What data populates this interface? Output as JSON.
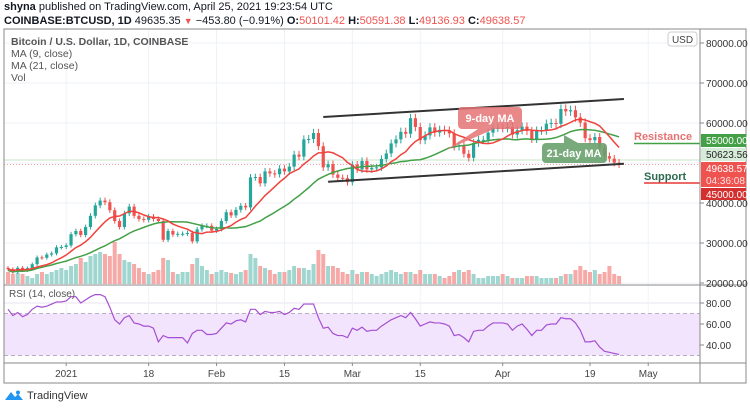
{
  "header": {
    "author": "shyna",
    "published": "published on TradingView.com, April 25, 2021 19:23:54 UTC",
    "symbol": "COINBASE:BTCUSD, 1D",
    "last": "49635.35",
    "change": "−453.80 (−0.91%)",
    "open_label": "O:",
    "open": "50101.42",
    "high_label": "H:",
    "high": "50591.38",
    "low_label": "L:",
    "low": "49136.93",
    "close_label": "C:",
    "close": "49638.57"
  },
  "legend": {
    "title": "Bitcoin / U.S. Dollar, 1D, COINBASE",
    "ma9": "MA (9, close)",
    "ma21": "MA (21, close)",
    "vol": "Vol",
    "rsi": "RSI (14, close)"
  },
  "currency_badge": "USD",
  "annotations": {
    "ma9_callout": "9-day MA",
    "ma21_callout": "21-day MA",
    "resistance": "Resistance",
    "support": "Support"
  },
  "price_labels": {
    "resistance": "55000.00",
    "ma_value": "50623.56",
    "last": "49638.57",
    "countdown": "04:36:08",
    "support": "45000.00"
  },
  "colors": {
    "up": "#26a69a",
    "down": "#ef5350",
    "ma9": "#f0423c",
    "ma21": "#43a047",
    "rsi": "#a64fd2",
    "resistance": "#43a047",
    "support": "#e53935"
  },
  "branding": "TradingView",
  "chart_data": [
    {
      "type": "candlestick",
      "title": "Bitcoin / U.S. Dollar, 1D, COINBASE",
      "start_date": "2020-12-20",
      "first_open": 23800,
      "y_ticks": [
        "20000.00",
        "30000.00",
        "40000.00",
        "60000.00",
        "70000.00",
        "80000.00"
      ],
      "ylim": [
        20000,
        81000
      ],
      "x_ticks": [
        {
          "label": "2021",
          "date": "2021-01-01"
        },
        {
          "label": "18",
          "date": "2021-01-18"
        },
        {
          "label": "Feb",
          "date": "2021-02-01"
        },
        {
          "label": "15",
          "date": "2021-02-15"
        },
        {
          "label": "Mar",
          "date": "2021-03-01"
        },
        {
          "label": "15",
          "date": "2021-03-15"
        },
        {
          "label": "Apr",
          "date": "2021-04-01"
        },
        {
          "label": "19",
          "date": "2021-04-19"
        },
        {
          "label": "May",
          "date": "2021-05-01"
        }
      ],
      "close": [
        23500,
        22700,
        23800,
        23200,
        23700,
        24700,
        26400,
        26300,
        27100,
        27400,
        28900,
        29000,
        29400,
        32200,
        33000,
        32000,
        34000,
        36800,
        39400,
        40600,
        40200,
        38200,
        35500,
        34000,
        37400,
        39100,
        36800,
        36000,
        35800,
        36600,
        36000,
        35500,
        30800,
        33000,
        32100,
        32300,
        32300,
        32500,
        30400,
        33400,
        34300,
        34300,
        33100,
        33500,
        35500,
        37700,
        36900,
        38300,
        39300,
        38900,
        46400,
        46500,
        44900,
        47900,
        47400,
        47200,
        48600,
        47900,
        49100,
        52100,
        51600,
        55900,
        56000,
        57500,
        54200,
        48900,
        49700,
        47100,
        46300,
        46200,
        45200,
        49600,
        48400,
        50500,
        48400,
        48800,
        48900,
        51000,
        52400,
        54900,
        55900,
        57800,
        57300,
        61200,
        59000,
        55700,
        56900,
        58900,
        57600,
        58300,
        58100,
        57400,
        54100,
        54400,
        52300,
        51300,
        55000,
        55800,
        55800,
        57600,
        58800,
        58800,
        58700,
        59000,
        57100,
        58200,
        59100,
        58000,
        56000,
        58100,
        58100,
        59800,
        60000,
        59800,
        63500,
        62900,
        63200,
        61400,
        60100,
        56200,
        55700,
        56500,
        53800,
        51700,
        51100,
        50100,
        49639
      ],
      "volume_relative": [
        12,
        10,
        11,
        10,
        8,
        6,
        10,
        12,
        10,
        12,
        14,
        16,
        14,
        18,
        20,
        26,
        22,
        28,
        30,
        32,
        30,
        28,
        42,
        30,
        24,
        22,
        20,
        16,
        12,
        10,
        12,
        14,
        26,
        24,
        12,
        10,
        12,
        12,
        20,
        26,
        18,
        14,
        10,
        12,
        14,
        12,
        11,
        10,
        12,
        14,
        30,
        26,
        18,
        16,
        14,
        10,
        12,
        12,
        14,
        18,
        16,
        16,
        14,
        20,
        34,
        30,
        18,
        18,
        16,
        12,
        10,
        14,
        10,
        12,
        12,
        10,
        8,
        10,
        12,
        14,
        12,
        10,
        12,
        12,
        10,
        14,
        10,
        10,
        10,
        8,
        6,
        8,
        12,
        14,
        12,
        14,
        10,
        6,
        6,
        8,
        8,
        8,
        10,
        8,
        6,
        6,
        6,
        8,
        8,
        8,
        6,
        6,
        6,
        6,
        8,
        10,
        10,
        14,
        18,
        14,
        12,
        14,
        10,
        12,
        18,
        10,
        8
      ],
      "indicators": [
        "MA (9, close)",
        "MA (21, close)"
      ],
      "channel": {
        "upper": [
          [
            "2021-02-23",
            61500
          ],
          [
            "2021-04-26",
            66000
          ]
        ],
        "lower": [
          [
            "2021-02-24",
            45300
          ],
          [
            "2021-04-26",
            49800
          ]
        ]
      },
      "horizontal_levels": {
        "resistance": 55000,
        "support": 45000,
        "ma_value": 50623.56,
        "last": 49638.57
      }
    },
    {
      "type": "line",
      "title": "RSI (14, close)",
      "start_date": "2020-12-20",
      "y_ticks": [
        "40.00",
        "60.00",
        "80.00"
      ],
      "bands": [
        30,
        70
      ],
      "ylim": [
        27,
        92
      ],
      "values": [
        74,
        68,
        71,
        67,
        69,
        74,
        77,
        76,
        77,
        79,
        81,
        81,
        82,
        86,
        86,
        80,
        83,
        86,
        88,
        88,
        86,
        76,
        64,
        60,
        66,
        68,
        61,
        60,
        58,
        58,
        56,
        43,
        49,
        47,
        47,
        47,
        47,
        42,
        51,
        54,
        54,
        50,
        50,
        51,
        56,
        61,
        60,
        63,
        64,
        62,
        74,
        74,
        69,
        72,
        71,
        71,
        72,
        69,
        71,
        75,
        74,
        79,
        79,
        79,
        66,
        56,
        57,
        51,
        49,
        49,
        47,
        56,
        54,
        57,
        53,
        54,
        54,
        58,
        61,
        64,
        66,
        68,
        66,
        71,
        65,
        58,
        60,
        62,
        61,
        61,
        60,
        58,
        49,
        50,
        47,
        43,
        53,
        54,
        54,
        58,
        61,
        61,
        61,
        60,
        54,
        58,
        60,
        55,
        49,
        54,
        54,
        59,
        60,
        60,
        66,
        65,
        65,
        61,
        54,
        43,
        43,
        44,
        38,
        34,
        33,
        32,
        31
      ]
    }
  ]
}
